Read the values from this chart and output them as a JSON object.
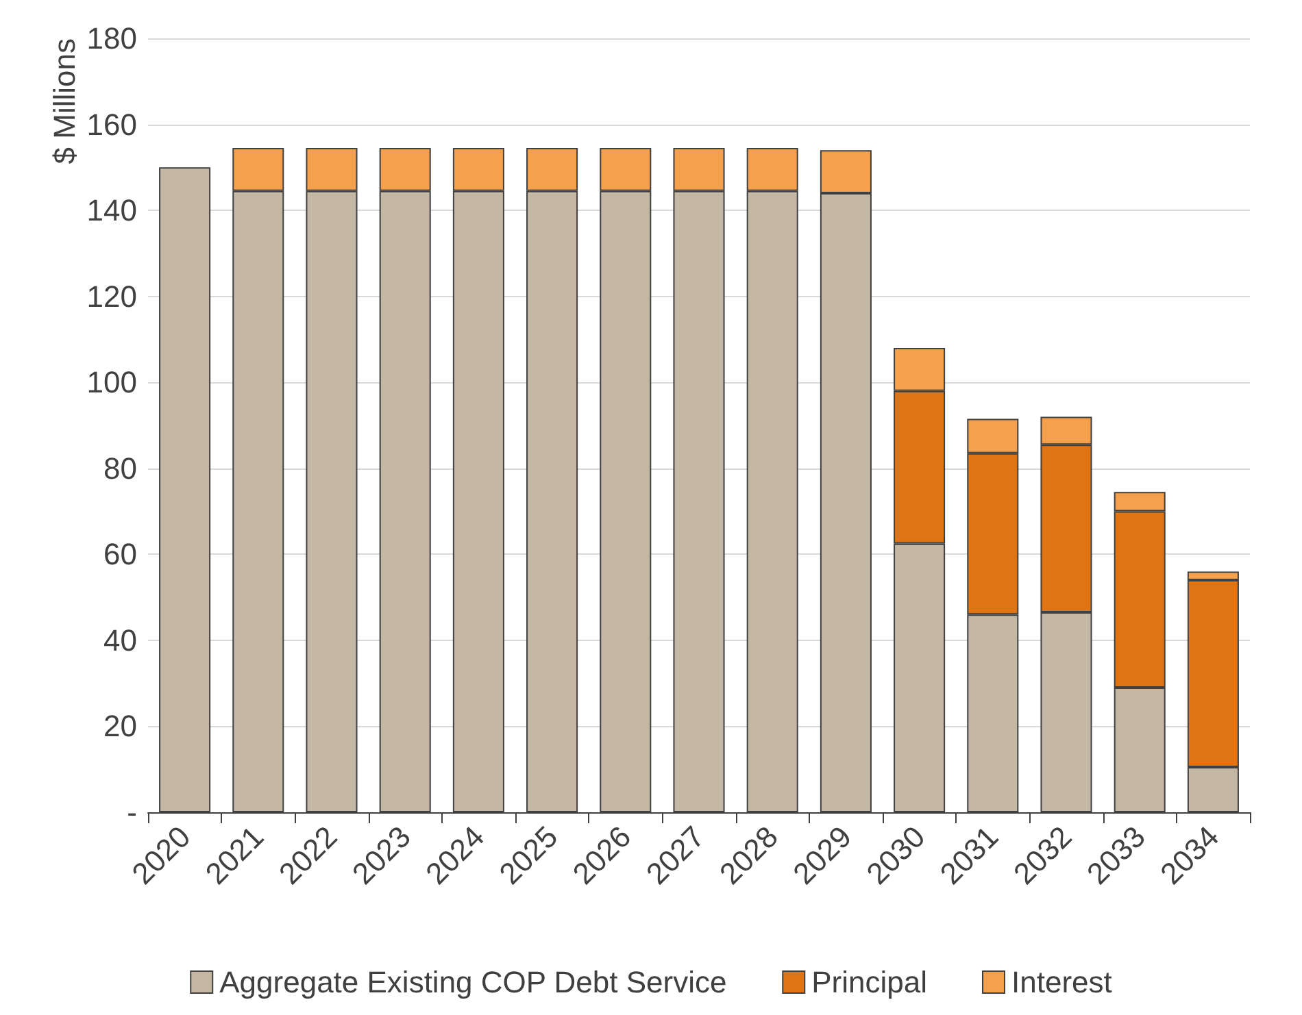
{
  "chart_data": {
    "type": "bar",
    "ylabel": "$ Millions",
    "stacked": true,
    "categories": [
      "2020",
      "2021",
      "2022",
      "2023",
      "2024",
      "2025",
      "2026",
      "2027",
      "2028",
      "2029",
      "2030",
      "2031",
      "2032",
      "2033",
      "2034"
    ],
    "series": [
      {
        "name": "Aggregate Existing COP Debt Service",
        "color": "#c4b8a5",
        "values": [
          150,
          144.5,
          144.5,
          144.5,
          144.5,
          144.5,
          144.5,
          144.5,
          144.5,
          144,
          62.5,
          46,
          46.5,
          29,
          10.5
        ]
      },
      {
        "name": "Principal",
        "color": "#e07412",
        "values": [
          null,
          null,
          null,
          null,
          null,
          null,
          null,
          null,
          null,
          null,
          35.5,
          37.5,
          39,
          41,
          43.5
        ]
      },
      {
        "name": "Interest",
        "color": "#f4a04c",
        "values": [
          null,
          10,
          10,
          10,
          10,
          10,
          10,
          10,
          10,
          10,
          10,
          8,
          6.5,
          4.5,
          2
        ]
      }
    ],
    "ylim": [
      0,
      180
    ],
    "yticks": [
      {
        "value": 0,
        "label": "-"
      },
      20,
      40,
      60,
      80,
      100,
      120,
      140,
      160,
      180
    ],
    "grid": "y",
    "legend": "bottom"
  }
}
